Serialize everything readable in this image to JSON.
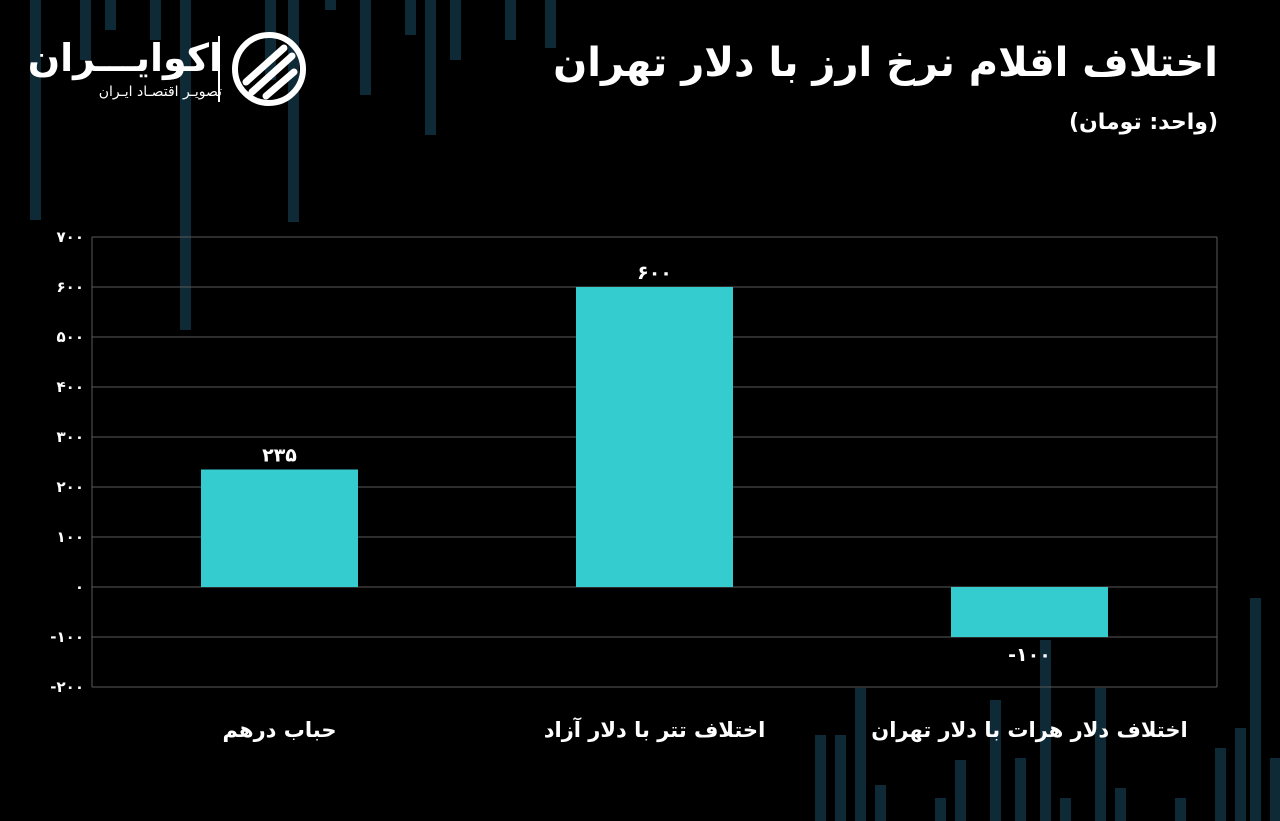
{
  "header": {
    "title": "اختلاف اقلام نرخ ارز با دلار تهران",
    "unit": "(واحد: تومان)"
  },
  "brand": {
    "name": "اکوایـــران",
    "tagline": "تصویـر اقتصـاد ایـران"
  },
  "colors": {
    "background": "#000000",
    "bar": "#35cccf",
    "grid": "#5a5a5a",
    "text": "#ffffff",
    "decor": "#0d2a36"
  },
  "chart_data": {
    "type": "bar",
    "categories": [
      "حباب درهم",
      "اختلاف تتر با دلار آزاد",
      "اختلاف دلار هرات با دلار تهران"
    ],
    "values": [
      235,
      600,
      -100
    ],
    "data_labels": [
      "۲۳۵",
      "۶۰۰",
      "-۱۰۰"
    ],
    "ylim": [
      -200,
      700
    ],
    "yticks": [
      -200,
      -100,
      0,
      100,
      200,
      300,
      400,
      500,
      600,
      700
    ],
    "ytick_labels": [
      "-۲۰۰",
      "-۱۰۰",
      "۰",
      "۱۰۰",
      "۲۰۰",
      "۳۰۰",
      "۴۰۰",
      "۵۰۰",
      "۶۰۰",
      "۷۰۰"
    ],
    "grid": true,
    "xlabel": "",
    "ylabel": ""
  }
}
